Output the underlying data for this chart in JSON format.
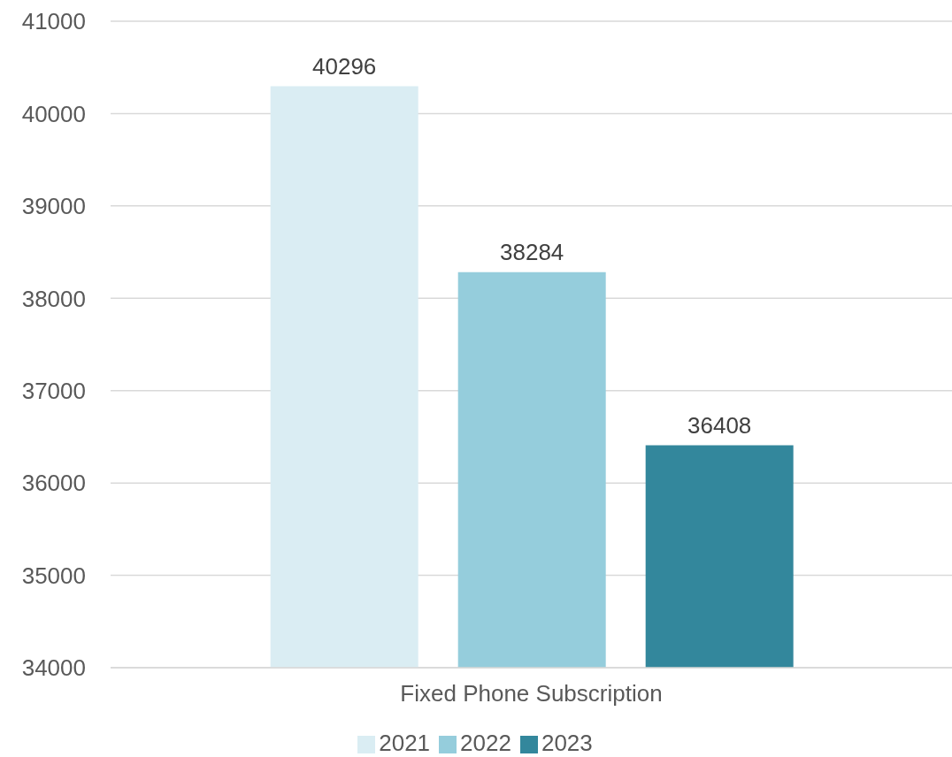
{
  "chart_data": {
    "type": "bar",
    "categories": [
      "Fixed Phone Subscription"
    ],
    "series": [
      {
        "name": "2021",
        "color": "#daedf3",
        "values": [
          40296
        ]
      },
      {
        "name": "2022",
        "color": "#95cddc",
        "values": [
          38284
        ]
      },
      {
        "name": "2023",
        "color": "#33879c",
        "values": [
          36408
        ]
      }
    ],
    "ylim": [
      34000,
      41000
    ],
    "yticks": [
      34000,
      35000,
      36000,
      37000,
      38000,
      39000,
      40000,
      41000
    ],
    "grid": "y",
    "legend": "bottom",
    "data_labels": true
  }
}
